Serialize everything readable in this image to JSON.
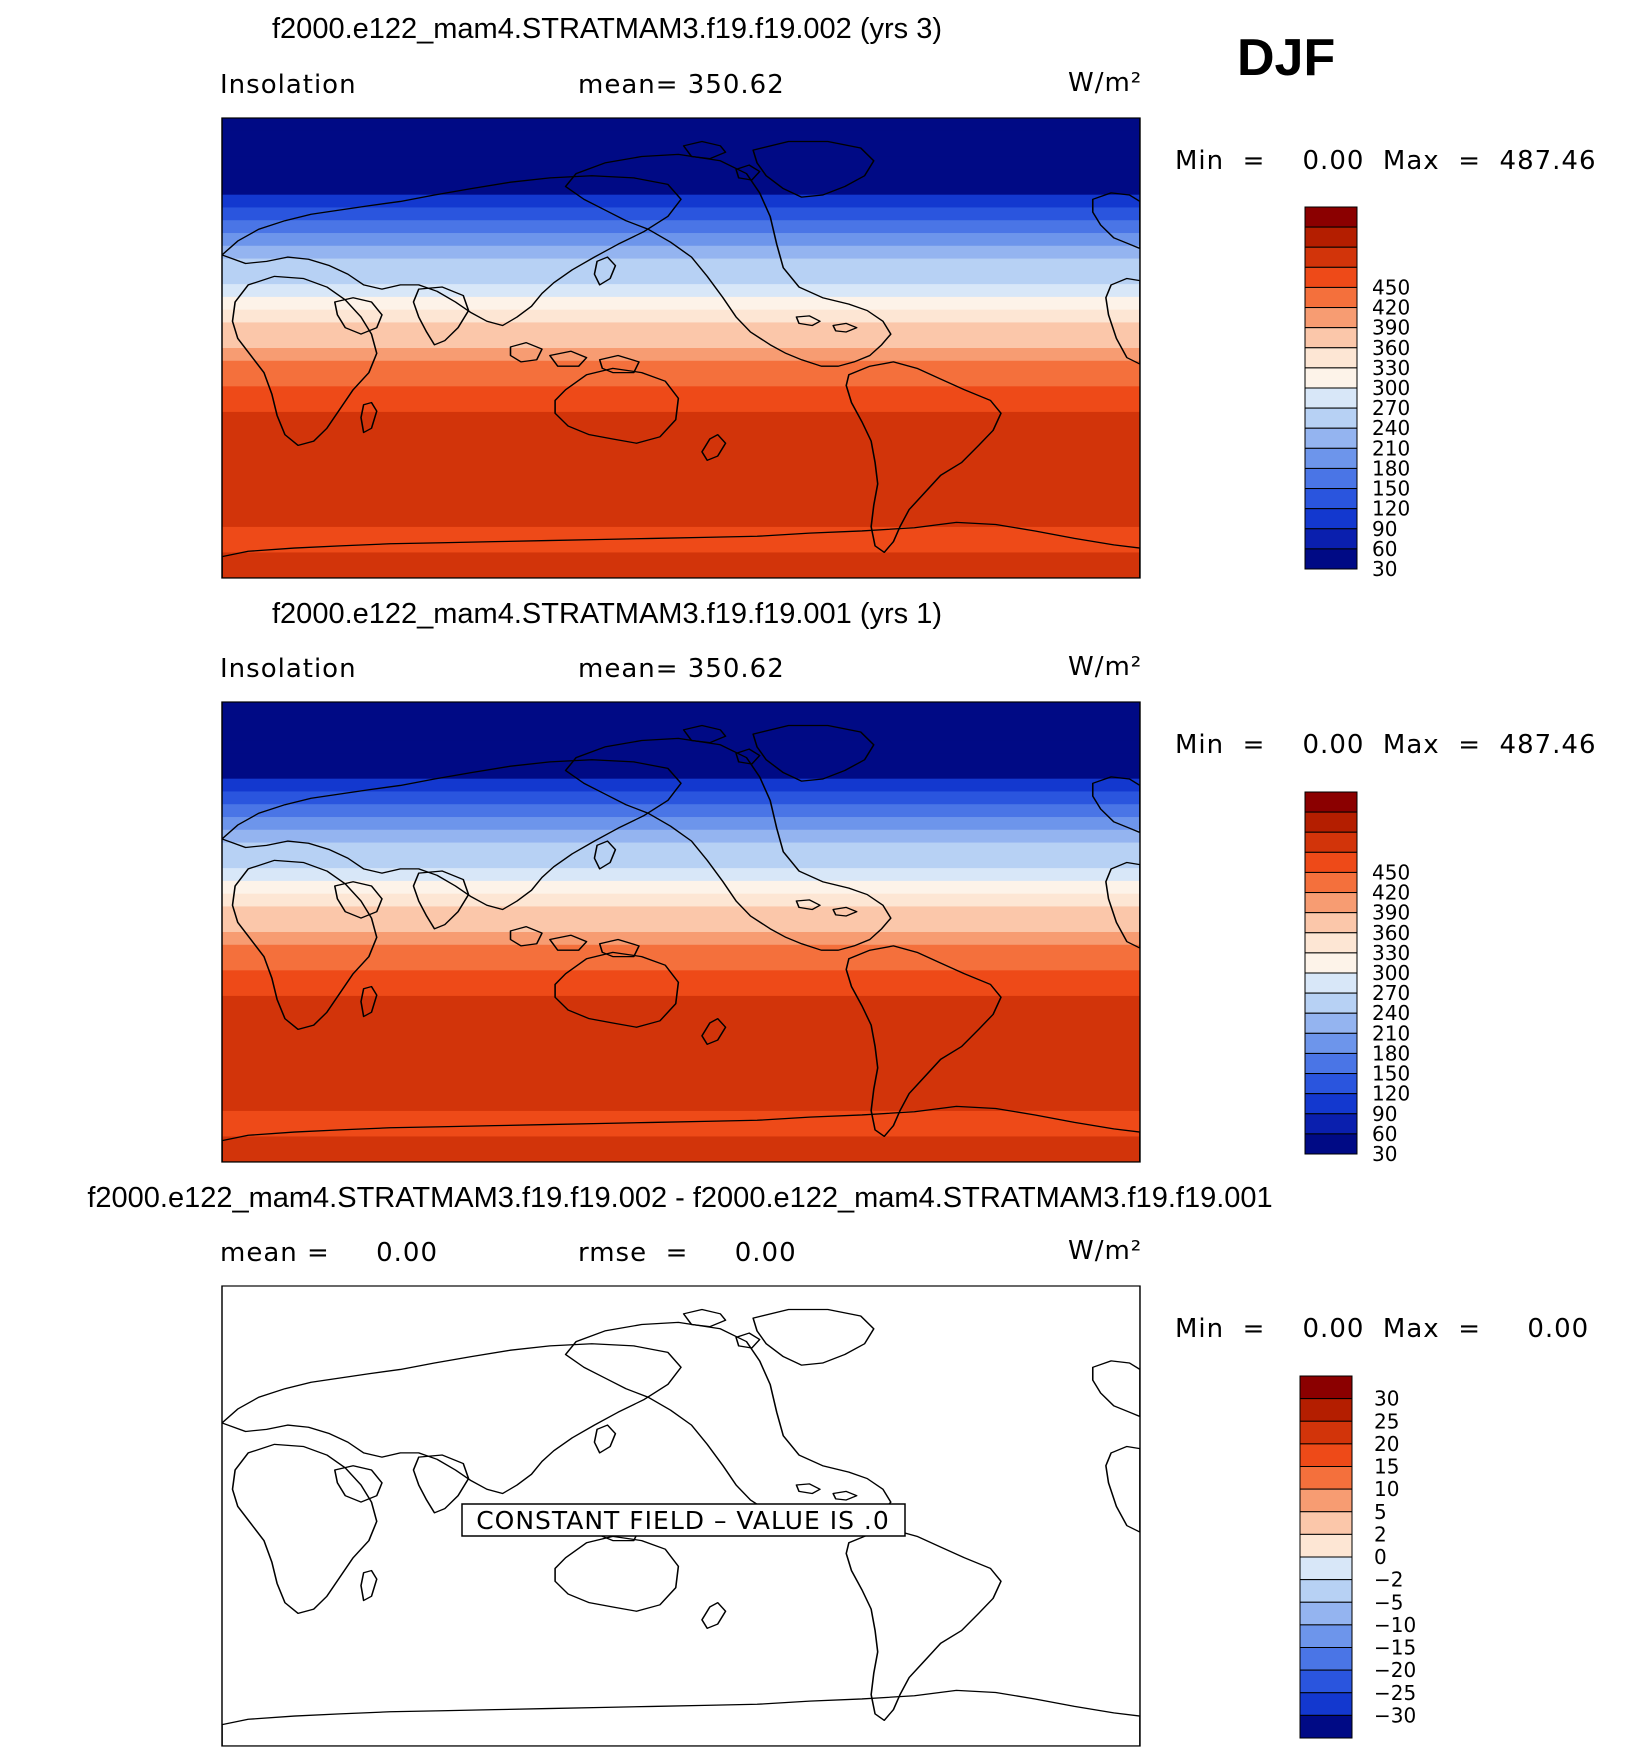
{
  "season": "DJF",
  "panels": [
    {
      "title": "f2000.e122_mam4.STRATMAM3.f19.f19.002 (yrs 3)",
      "left_label": "Insolation",
      "center_label": "mean=  350.62",
      "units": "W/m²",
      "minmax": "Min  =    0.00  Max  =  487.46"
    },
    {
      "title": "f2000.e122_mam4.STRATMAM3.f19.f19.001 (yrs 1)",
      "left_label": "Insolation",
      "center_label": "mean=  350.62",
      "units": "W/m²",
      "minmax": "Min  =    0.00  Max  =  487.46"
    },
    {
      "title": "f2000.e122_mam4.STRATMAM3.f19.f19.002 - f2000.e122_mam4.STRATMAM3.f19.f19.001",
      "left_label": "mean =     0.00",
      "center_label": "rmse  =     0.00",
      "units": "W/m²",
      "minmax": "Min  =    0.00  Max  =     0.00",
      "annotation": "CONSTANT FIELD – VALUE IS .0"
    }
  ],
  "chart_data": [
    {
      "type": "heatmap",
      "variable": "Insolation",
      "units": "W/m²",
      "mean": 350.62,
      "min": 0.0,
      "max": 487.46,
      "zonal_profile_lat": [
        90,
        85,
        80,
        75,
        70,
        65,
        60,
        55,
        50,
        45,
        40,
        35,
        30,
        25,
        20,
        15,
        10,
        5,
        0,
        -5,
        -10,
        -15,
        -20,
        -25,
        -30,
        -35,
        -40,
        -45,
        -50,
        -55,
        -60,
        -65,
        -70,
        -75,
        -80,
        -85,
        -90
      ],
      "zonal_profile_value": [
        0,
        0,
        0,
        0,
        0,
        10,
        45,
        75,
        105,
        135,
        165,
        195,
        225,
        250,
        275,
        300,
        325,
        345,
        370,
        395,
        410,
        425,
        440,
        455,
        465,
        465,
        465,
        465,
        465,
        465,
        465,
        465,
        445,
        440,
        430,
        470,
        470
      ],
      "colorbar_levels": [
        "450",
        "420",
        "390",
        "360",
        "330",
        "300",
        "270",
        "240",
        "210",
        "180",
        "150",
        "120",
        "90",
        "60",
        "30"
      ],
      "colorbar_colors": [
        "#8b0000",
        "#b41e00",
        "#d2340a",
        "#ee4a18",
        "#f4703c",
        "#f79c72",
        "#fbc7aa",
        "#fde6d4",
        "#fdf3e9",
        "#d8e7f8",
        "#b7d1f4",
        "#94b4f0",
        "#6d95eb",
        "#4a75e6",
        "#2a55de",
        "#1338cf",
        "#0a1fae",
        "#000a85"
      ]
    },
    {
      "type": "heatmap",
      "variable": "Insolation",
      "units": "W/m²",
      "mean": 350.62,
      "min": 0.0,
      "max": 487.46,
      "zonal_profile_lat": [
        90,
        85,
        80,
        75,
        70,
        65,
        60,
        55,
        50,
        45,
        40,
        35,
        30,
        25,
        20,
        15,
        10,
        5,
        0,
        -5,
        -10,
        -15,
        -20,
        -25,
        -30,
        -35,
        -40,
        -45,
        -50,
        -55,
        -60,
        -65,
        -70,
        -75,
        -80,
        -85,
        -90
      ],
      "zonal_profile_value": [
        0,
        0,
        0,
        0,
        0,
        10,
        45,
        75,
        105,
        135,
        165,
        195,
        225,
        250,
        275,
        300,
        325,
        345,
        370,
        395,
        410,
        425,
        440,
        455,
        465,
        465,
        465,
        465,
        465,
        465,
        465,
        465,
        445,
        440,
        430,
        470,
        470
      ],
      "colorbar_levels": [
        "450",
        "420",
        "390",
        "360",
        "330",
        "300",
        "270",
        "240",
        "210",
        "180",
        "150",
        "120",
        "90",
        "60",
        "30"
      ],
      "colorbar_colors": [
        "#8b0000",
        "#b41e00",
        "#d2340a",
        "#ee4a18",
        "#f4703c",
        "#f79c72",
        "#fbc7aa",
        "#fde6d4",
        "#fdf3e9",
        "#d8e7f8",
        "#b7d1f4",
        "#94b4f0",
        "#6d95eb",
        "#4a75e6",
        "#2a55de",
        "#1338cf",
        "#0a1fae",
        "#000a85"
      ]
    },
    {
      "type": "heatmap",
      "variable": "difference",
      "units": "W/m²",
      "mean": 0.0,
      "rmse": 0.0,
      "min": 0.0,
      "max": 0.0,
      "constant_value": 0,
      "colorbar_levels": [
        "30",
        "25",
        "20",
        "15",
        "10",
        "5",
        "2",
        "0",
        "−2",
        "−5",
        "−10",
        "−15",
        "−20",
        "−25",
        "−30"
      ],
      "colorbar_colors": [
        "#8b0000",
        "#b41e00",
        "#d2340a",
        "#ee4a18",
        "#f4703c",
        "#f79c72",
        "#fbc7aa",
        "#fde6d4",
        "#d8e7f8",
        "#b7d1f4",
        "#94b4f0",
        "#6d95eb",
        "#4a75e6",
        "#2a55de",
        "#1338cf",
        "#000a85"
      ]
    }
  ]
}
